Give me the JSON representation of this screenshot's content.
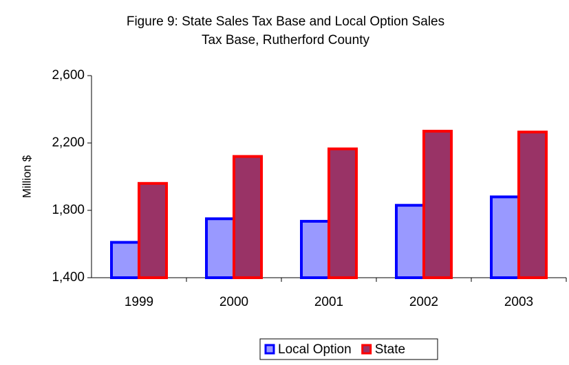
{
  "chart_data": {
    "type": "bar",
    "title": "Figure 9: State Sales Tax Base and Local Option Sales Tax Base, Rutherford County",
    "y_label": "Million $",
    "categories": [
      "1999",
      "2000",
      "2001",
      "2002",
      "2003"
    ],
    "series": [
      {
        "name": "Local Option",
        "color": "#9999ff",
        "edge_color": "#0000ff",
        "values": [
          1610,
          1750,
          1735,
          1830,
          1880
        ]
      },
      {
        "name": "State",
        "color": "#993366",
        "edge_color": "#ff0000",
        "values": [
          1960,
          2120,
          2165,
          2270,
          2265
        ]
      }
    ],
    "ylim": [
      1400,
      2600
    ],
    "yticks": [
      {
        "value": 1400,
        "label": "1,400"
      },
      {
        "value": 1800,
        "label": "1,800"
      },
      {
        "value": 2200,
        "label": "2,200"
      },
      {
        "value": 2600,
        "label": "2,600"
      }
    ],
    "legend": "bottom"
  }
}
